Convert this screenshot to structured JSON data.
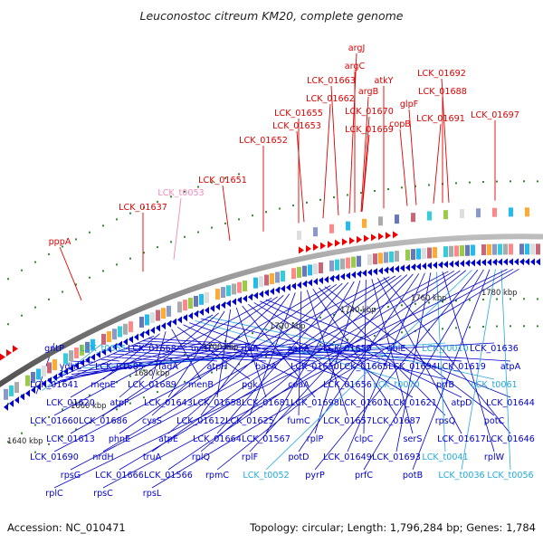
{
  "title": "Leuconostoc citreum KM20, complete genome",
  "footer": {
    "accession": "Accession: NC_010471",
    "summary": "Topology: circular; Length: 1,796,284 bp; Genes: 1,784"
  },
  "colors": {
    "forward_label": "#dd0000",
    "reverse_label": "#0000cc",
    "rna_label": "#22aadd",
    "forward_arrow": "#ee0000",
    "reverse_arrow": "#0000dd",
    "ring": "#888888"
  },
  "scale_ticks": [
    "1640 kbp",
    "1660 kbp",
    "1680 kbp",
    "1700 kbp",
    "1720 kbp",
    "1740 kbp",
    "1760 kbp",
    "1780 kbp"
  ],
  "top_labels": [
    "argJ",
    "argC",
    "LCK_01663",
    "argB",
    "atkY",
    "LCK_01692",
    "LCK_01662",
    "LCK_01688",
    "glpF",
    "LCK_01670",
    "LCK_01655",
    "copB",
    "LCK_01691",
    "LCK_01697",
    "LCK_01653",
    "LCK_01669",
    "LCK_01652",
    "LCK_01651",
    "LCK_t0053",
    "LCK_01637",
    "pppA"
  ],
  "bottom_labels": [
    "gntP",
    "LCK_t0055",
    "LCK_01668",
    "uvrB",
    "rluA",
    "aapA",
    "LCK_01659",
    "ubiE",
    "LCK_r0010",
    "LCK_01636",
    "ydhC",
    "LCK_01685",
    "fadA",
    "atpH",
    "bacA",
    "LCK_01650",
    "LCK_01665",
    "LCK_01694",
    "LCK_01619",
    "atpA",
    "LCK_01641",
    "menE",
    "LCK_01689",
    "menB",
    "pgk",
    "coaA",
    "LCK_01656",
    "LCK_t0070",
    "prfB",
    "LCK_t0061",
    "LCK_01620",
    "atpF",
    "LCK_01643",
    "LCK_01658",
    "LCK_01681",
    "LCK_01698",
    "LCK_01601",
    "LCK_01621",
    "atpD",
    "LCK_01644",
    "LCK_01660",
    "LCK_01686",
    "cysS",
    "LCK_01612",
    "LCK_01625",
    "fumC",
    "LCK_01657",
    "LCK_01687",
    "rpsQ",
    "potC",
    "LCK_01613",
    "phnE",
    "atpE",
    "LCK_01664",
    "LCK_01567",
    "rplP",
    "clpC",
    "serS",
    "LCK_01617",
    "LCK_01646",
    "LCK_01690",
    "nrdH",
    "truA",
    "rplQ",
    "rplF",
    "potD",
    "LCK_01649",
    "LCK_01693",
    "LCK_t0041",
    "rplW",
    "rpsG",
    "LCK_01666",
    "LCK_01566",
    "rpmC",
    "LCK_t0052",
    "pyrP",
    "prfC",
    "potB",
    "LCK_t0036",
    "LCK_t0056",
    "rplC",
    "rpsC",
    "rpsL"
  ]
}
